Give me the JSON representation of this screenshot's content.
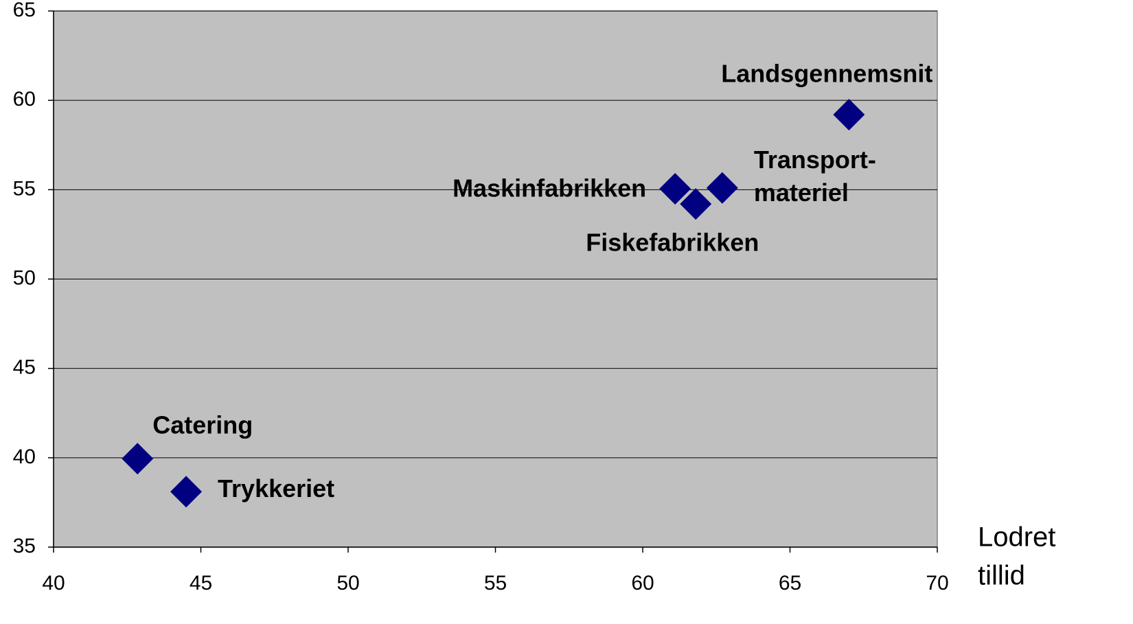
{
  "chart_data": {
    "type": "scatter",
    "x": [
      67.0,
      61.1,
      61.8,
      62.7,
      42.85,
      44.5
    ],
    "values": [
      59.2,
      55.05,
      54.2,
      55.1,
      39.95,
      38.1
    ],
    "point_labels": [
      [
        "Landsgennemsnit"
      ],
      [
        "Maskinfabrikken"
      ],
      [
        "Fiskefabrikken"
      ],
      [
        "Transport-",
        "materiel"
      ],
      [
        "Catering"
      ],
      [
        "Trykkeriet"
      ]
    ],
    "color": "#000080",
    "xlabel": [
      "Lodret",
      "tillid"
    ],
    "xlim": [
      40,
      70
    ],
    "xticks": [
      40,
      45,
      50,
      55,
      60,
      65,
      70
    ],
    "ylim": [
      35,
      65
    ],
    "yticks": [
      35,
      40,
      45,
      50,
      55,
      60,
      65
    ],
    "grid": true
  }
}
